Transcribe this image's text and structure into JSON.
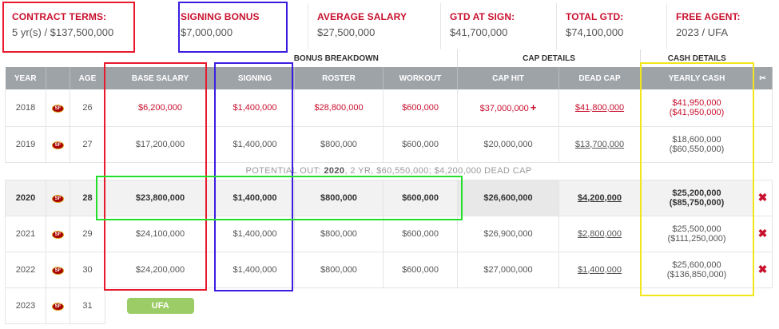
{
  "summary": [
    {
      "label": "CONTRACT TERMS:",
      "value": "5 yr(s) / $137,500,000"
    },
    {
      "label": "SIGNING BONUS",
      "value": "$7,000,000"
    },
    {
      "label": "AVERAGE SALARY",
      "value": "$27,500,000"
    },
    {
      "label": "GTD AT SIGN:",
      "value": "$41,700,000"
    },
    {
      "label": "TOTAL GTD:",
      "value": "$74,100,000"
    },
    {
      "label": "FREE AGENT:",
      "value": "2023 / UFA"
    }
  ],
  "groups": {
    "bonus": "BONUS BREAKDOWN",
    "cap": "CAP DETAILS",
    "cash": "CASH DETAILS"
  },
  "headers": {
    "year": "YEAR",
    "age": "AGE",
    "base": "BASE SALARY",
    "signing": "SIGNING",
    "roster": "ROSTER",
    "workout": "WORKOUT",
    "cap_hit": "CAP HIT",
    "dead_cap": "DEAD CAP",
    "cash": "YEARLY CASH"
  },
  "icons": {
    "team_logo": "49ers-logo-icon",
    "cut": "scissors-icon",
    "remove": "remove-x-icon"
  },
  "team_logo_text": "SF",
  "rows": [
    {
      "year": "2018",
      "age": "26",
      "base": "$6,200,000",
      "signing": "$1,400,000",
      "roster": "$28,800,000",
      "workout": "$600,000",
      "cap_hit": "$37,000,000",
      "dead_cap": "$41,800,000",
      "cash": "$41,950,000",
      "cash_cum": "($41,950,000)"
    },
    {
      "year": "2019",
      "age": "27",
      "base": "$17,200,000",
      "signing": "$1,400,000",
      "roster": "$800,000",
      "workout": "$600,000",
      "cap_hit": "$20,000,000",
      "dead_cap": "$13,700,000",
      "cash": "$18,600,000",
      "cash_cum": "($60,550,000)"
    },
    {
      "year": "2020",
      "age": "28",
      "base": "$23,800,000",
      "signing": "$1,400,000",
      "roster": "$800,000",
      "workout": "$600,000",
      "cap_hit": "$26,600,000",
      "dead_cap": "$4,200,000",
      "cash": "$25,200,000",
      "cash_cum": "($85,750,000)"
    },
    {
      "year": "2021",
      "age": "29",
      "base": "$24,100,000",
      "signing": "$1,400,000",
      "roster": "$800,000",
      "workout": "$600,000",
      "cap_hit": "$26,900,000",
      "dead_cap": "$2,800,000",
      "cash": "$25,500,000",
      "cash_cum": "($111,250,000)"
    },
    {
      "year": "2022",
      "age": "30",
      "base": "$24,200,000",
      "signing": "$1,400,000",
      "roster": "$800,000",
      "workout": "$600,000",
      "cap_hit": "$27,000,000",
      "dead_cap": "$1,400,000",
      "cash": "$25,600,000",
      "cash_cum": "($136,850,000)"
    },
    {
      "year": "2023",
      "age": "31",
      "status": "UFA"
    }
  ],
  "note": {
    "prefix": "POTENTIAL OUT:",
    "year": "2020",
    "text": ", 2 YR, $60,550,000; $4,200,000 DEAD CAP"
  },
  "annotation_colors": {
    "red": "#e8192c",
    "blue": "#3a1ee0",
    "green": "#22e02a",
    "yellow": "#f2e61a"
  }
}
